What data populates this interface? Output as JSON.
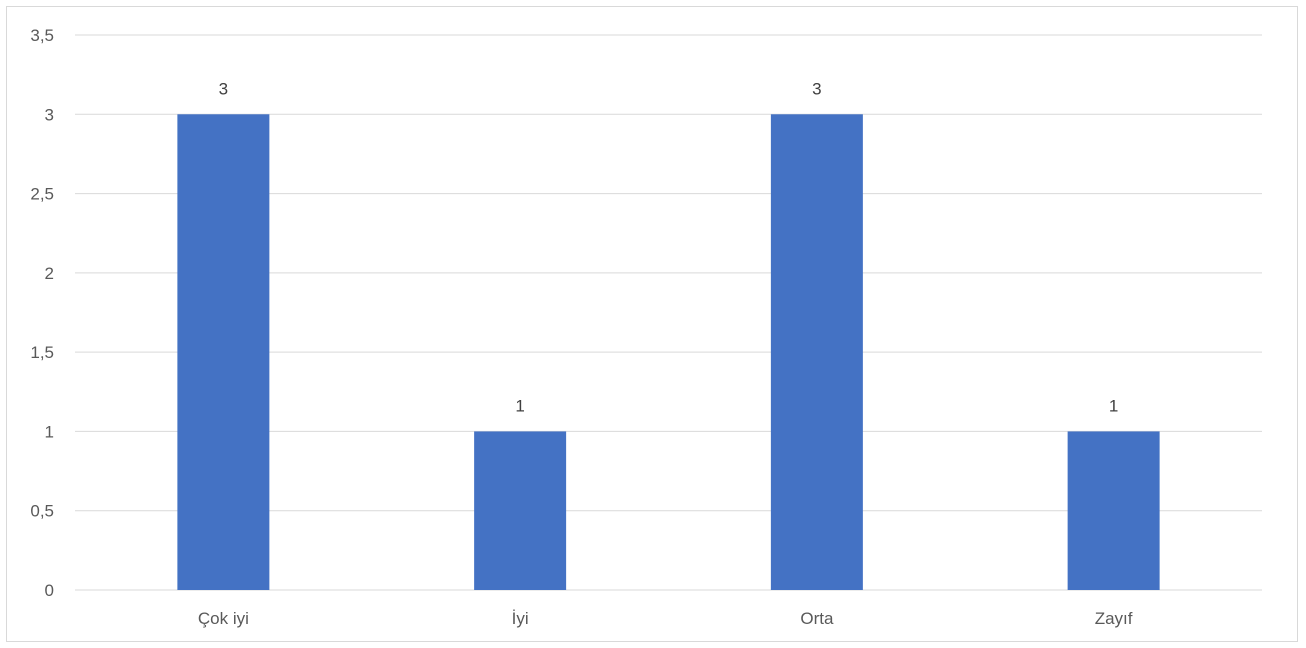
{
  "chart_data": {
    "type": "bar",
    "categories": [
      "Çok iyi",
      "İyi",
      "Orta",
      "Zayıf"
    ],
    "values": [
      3,
      1,
      3,
      1
    ],
    "data_labels": [
      "3",
      "1",
      "3",
      "1"
    ],
    "title": "",
    "xlabel": "",
    "ylabel": "",
    "ylim": [
      0,
      3.5
    ],
    "y_ticks": [
      0,
      0.5,
      1,
      1.5,
      2,
      2.5,
      3,
      3.5
    ],
    "y_tick_labels": [
      "0",
      "0,5",
      "1",
      "1,5",
      "2",
      "2,5",
      "3",
      "3,5"
    ],
    "grid": true,
    "legend": "none",
    "bar_color": "#4472c4",
    "grid_color": "#d9d9d9"
  }
}
